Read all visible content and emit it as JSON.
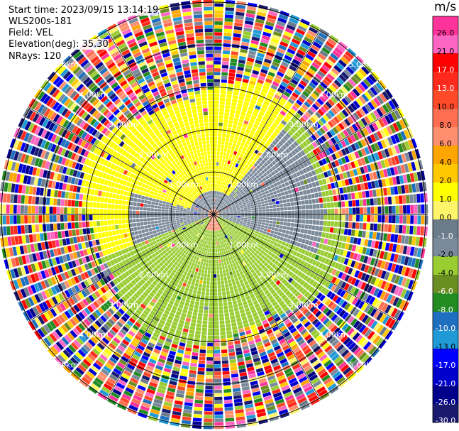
{
  "info": {
    "start_time": "Start time: 2023/09/15 13:14:19",
    "instrument": "WLS200s-181",
    "field": "Field: VEL",
    "elevation": "Elevation(deg): 35.30",
    "nrays": "NRays: 120"
  },
  "chart_data": {
    "type": "heatmap",
    "projection": "polar PPI",
    "field": "VEL",
    "units": "m/s",
    "nrays": 120,
    "range_rings_km": [
      1.0,
      2.0,
      3.0,
      4.0,
      5.0
    ],
    "range_ring_labels": [
      "1.00km",
      "2.00km",
      "3.00km",
      "4.00km",
      "5.00km"
    ],
    "radial_spokes_deg": [
      0,
      30,
      60,
      90,
      120,
      150,
      180,
      210,
      240,
      270,
      300,
      330
    ],
    "colorbar": {
      "title": "m/s",
      "tick_labels": [
        "26.0",
        "21.0",
        "17.0",
        "13.0",
        "10.0",
        "8.0",
        "6.0",
        "4.0",
        "2.0",
        "1.0",
        "0.0",
        "-1.0",
        "-2.0",
        "-4.0",
        "-6.0",
        "-8.0",
        "-10.0",
        "-13.0",
        "-17.0",
        "-21.0",
        "-26.0",
        "-30.0"
      ],
      "bins": [
        {
          "lo": 26,
          "hi": 30,
          "color": "#ff3399"
        },
        {
          "lo": 21,
          "hi": 26,
          "color": "#ff66c4"
        },
        {
          "lo": 17,
          "hi": 21,
          "color": "#ff0000"
        },
        {
          "lo": 13,
          "hi": 17,
          "color": "#ff2a1c"
        },
        {
          "lo": 10,
          "hi": 13,
          "color": "#ff4a2a"
        },
        {
          "lo": 8,
          "hi": 10,
          "color": "#ff6e50"
        },
        {
          "lo": 6,
          "hi": 8,
          "color": "#ff8f6e"
        },
        {
          "lo": 4,
          "hi": 6,
          "color": "#ffa500"
        },
        {
          "lo": 2,
          "hi": 4,
          "color": "#ffc800"
        },
        {
          "lo": 1,
          "hi": 2,
          "color": "#ffff00"
        },
        {
          "lo": 0,
          "hi": 1,
          "color": "#fff56a"
        },
        {
          "lo": -1,
          "hi": 0,
          "color": "#6b7b8a"
        },
        {
          "lo": -2,
          "hi": -1,
          "color": "#7a8a9a"
        },
        {
          "lo": -4,
          "hi": -2,
          "color": "#9acd32"
        },
        {
          "lo": -6,
          "hi": -4,
          "color": "#6b8e23"
        },
        {
          "lo": -8,
          "hi": -6,
          "color": "#228b22"
        },
        {
          "lo": -10,
          "hi": -8,
          "color": "#1e6fbf"
        },
        {
          "lo": -13,
          "hi": -10,
          "color": "#1f9ad6"
        },
        {
          "lo": -17,
          "hi": -13,
          "color": "#0000ff"
        },
        {
          "lo": -21,
          "hi": -17,
          "color": "#0000cd"
        },
        {
          "lo": -26,
          "hi": -21,
          "color": "#00008b"
        },
        {
          "lo": -30,
          "hi": -26,
          "color": "#191970"
        }
      ]
    },
    "regions": [
      {
        "area": "north, within ~3 km",
        "velocity_range": [
          1,
          2
        ],
        "color": "#ffff00"
      },
      {
        "area": "southwest to south, within ~3 km",
        "velocity_range": [
          -4,
          -2
        ],
        "color": "#9acd32"
      },
      {
        "area": "east and north-east band, within ~2.5 km",
        "velocity_range": [
          -2,
          -1
        ],
        "color": "#7a8a9a"
      },
      {
        "area": "near center (south)",
        "velocity_range": [
          4,
          8
        ],
        "color": "#ff8f6e"
      },
      {
        "area": "beyond ~3 km, all azimuths",
        "velocity_range": [
          -30,
          30
        ],
        "pattern": "noisy / random"
      }
    ]
  }
}
